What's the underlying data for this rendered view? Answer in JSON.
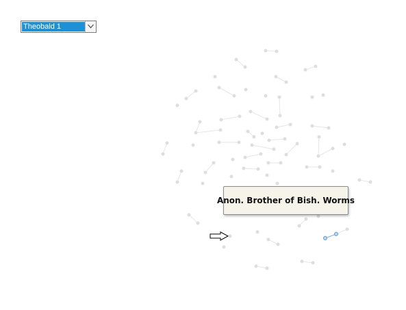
{
  "person_select": {
    "selected": "Theobald 1"
  },
  "tooltip": {
    "text": "Anon. Brother of Bish. Worms"
  },
  "colors": {
    "node": "#dedede",
    "edge": "#e6e6e6",
    "highlight_node": "#5b9bd5",
    "highlight_edge": "#7fb4e6",
    "select_highlight": "#1e90d6"
  },
  "icons": {
    "select_arrow": "chevron-down-icon",
    "cursor": "arrow-cursor-icon"
  }
}
